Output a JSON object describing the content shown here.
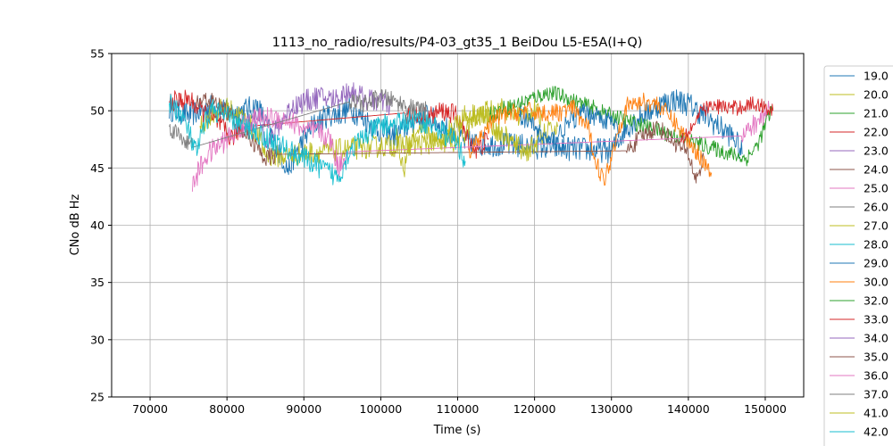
{
  "chart_data": {
    "type": "line",
    "title": "1113_no_radio/results/P4-03_gt35_1 BeiDou L5-E5A(I+Q)",
    "xlabel": "Time (s)",
    "ylabel": "CNo dB Hz",
    "xlim": [
      65000,
      155000
    ],
    "ylim": [
      25,
      55
    ],
    "xticks": [
      70000,
      80000,
      90000,
      100000,
      110000,
      120000,
      130000,
      140000,
      150000
    ],
    "xtick_labels": [
      "70000",
      "80000",
      "90000",
      "100000",
      "110000",
      "120000",
      "130000",
      "140000",
      "150000"
    ],
    "yticks": [
      25,
      30,
      35,
      40,
      45,
      50,
      55
    ],
    "ytick_labels": [
      "25",
      "30",
      "35",
      "40",
      "45",
      "50",
      "55"
    ],
    "grid": true,
    "legend_position": "outside-right",
    "series": [
      {
        "name": "19.0",
        "color": "#1f77b4",
        "noise": 1.1,
        "points": [
          [
            72500,
            50.2
          ],
          [
            75000,
            49.6
          ],
          [
            78000,
            50.4
          ],
          [
            81000,
            49.8
          ],
          [
            84000,
            50.4
          ],
          [
            86000,
            47.5
          ],
          [
            88000,
            44.8
          ],
          [
            89000,
            46.5
          ],
          [
            91000,
            48.6
          ],
          [
            93000,
            49.6
          ],
          [
            95000,
            49.8
          ],
          [
            96000,
            50.2
          ],
          [
            98000,
            49.2
          ],
          [
            100000,
            48.2
          ],
          [
            102000,
            47.8
          ],
          [
            104000,
            49.0
          ],
          [
            106000,
            49.6
          ],
          [
            108000,
            48.6
          ],
          [
            110000,
            47.8
          ],
          [
            111000,
            47.2
          ],
          [
            130000,
            46.5
          ],
          [
            132000,
            48.6
          ],
          [
            134000,
            49.6
          ],
          [
            136000,
            50.4
          ],
          [
            138000,
            51.0
          ],
          [
            140000,
            50.6
          ],
          [
            142000,
            49.6
          ],
          [
            144000,
            48.6
          ],
          [
            146000,
            47.6
          ],
          [
            147000,
            46.2
          ]
        ]
      },
      {
        "name": "20.0",
        "color": "#bcbd22",
        "noise": 1.0,
        "points": [
          [
            76500,
            48.6
          ],
          [
            78000,
            49.8
          ],
          [
            80000,
            50.2
          ],
          [
            82000,
            49.4
          ],
          [
            84000,
            48.0
          ],
          [
            85000,
            46.2
          ],
          [
            87000,
            46.0
          ],
          [
            90000,
            46.3
          ],
          [
            95000,
            46.6
          ],
          [
            100000,
            46.9
          ],
          [
            105000,
            47.1
          ],
          [
            110000,
            47.3
          ],
          [
            112000,
            49.0
          ],
          [
            114000,
            50.0
          ],
          [
            116000,
            50.2
          ],
          [
            118000,
            49.6
          ],
          [
            120000,
            50.0
          ],
          [
            121000,
            49.2
          ]
        ]
      },
      {
        "name": "21.0",
        "color": "#2ca02c",
        "noise": 0.7,
        "points": [
          [
            114000,
            49.6
          ],
          [
            116000,
            50.2
          ],
          [
            118000,
            50.6
          ],
          [
            120000,
            51.2
          ],
          [
            122000,
            51.6
          ],
          [
            124000,
            51.2
          ],
          [
            126000,
            50.6
          ],
          [
            128000,
            50.2
          ],
          [
            129000,
            49.8
          ],
          [
            147500,
            45.8
          ],
          [
            149000,
            47.0
          ],
          [
            150500,
            49.6
          ],
          [
            151000,
            50.2
          ]
        ]
      },
      {
        "name": "22.0",
        "color": "#d62728",
        "noise": 0.9,
        "points": [
          [
            72500,
            50.8
          ],
          [
            75000,
            51.0
          ],
          [
            77000,
            49.8
          ],
          [
            79000,
            48.8
          ],
          [
            80500,
            47.6
          ],
          [
            82000,
            48.6
          ],
          [
            103000,
            49.8
          ],
          [
            106000,
            49.4
          ],
          [
            108000,
            50.0
          ],
          [
            110000,
            49.6
          ],
          [
            111000,
            47.8
          ],
          [
            112500,
            46.5
          ],
          [
            114000,
            47.6
          ]
        ]
      },
      {
        "name": "23.0",
        "color": "#9467bd",
        "noise": 1.0,
        "points": [
          [
            82000,
            48.2
          ],
          [
            84000,
            49.4
          ],
          [
            85500,
            47.2
          ],
          [
            87000,
            49.0
          ],
          [
            88500,
            50.4
          ],
          [
            90000,
            50.8
          ],
          [
            92000,
            51.2
          ],
          [
            94000,
            51.0
          ],
          [
            96000,
            51.8
          ],
          [
            98000,
            51.0
          ],
          [
            100000,
            50.8
          ],
          [
            101500,
            50.4
          ]
        ]
      },
      {
        "name": "24.0",
        "color": "#8c564b",
        "noise": 0.8,
        "points": [
          [
            76000,
            50.6
          ],
          [
            77500,
            51.0
          ],
          [
            79000,
            50.4
          ],
          [
            80500,
            49.6
          ],
          [
            82000,
            48.4
          ],
          [
            83500,
            47.2
          ],
          [
            85000,
            45.8
          ],
          [
            86500,
            46.2
          ],
          [
            132000,
            46.5
          ],
          [
            134000,
            47.8
          ],
          [
            136000,
            48.6
          ],
          [
            138000,
            47.4
          ],
          [
            140000,
            46.2
          ],
          [
            141000,
            44.0
          ],
          [
            142000,
            45.8
          ]
        ]
      },
      {
        "name": "25.0",
        "color": "#e377c2",
        "noise": 1.0,
        "points": [
          [
            75500,
            43.5
          ],
          [
            76500,
            45.0
          ],
          [
            77500,
            46.2
          ],
          [
            79000,
            47.0
          ],
          [
            81000,
            48.0
          ],
          [
            83000,
            49.2
          ],
          [
            86000,
            49.4
          ],
          [
            88000,
            49.2
          ],
          [
            89500,
            48.6
          ],
          [
            90500,
            48.2
          ],
          [
            92000,
            48.2
          ],
          [
            93500,
            47.4
          ],
          [
            94500,
            45.0
          ],
          [
            95500,
            46.4
          ],
          [
            147000,
            47.8
          ],
          [
            149000,
            49.0
          ],
          [
            150000,
            49.8
          ],
          [
            150500,
            50.2
          ]
        ]
      },
      {
        "name": "26.0",
        "color": "#7f7f7f",
        "noise": 0.8,
        "points": [
          [
            72500,
            48.6
          ],
          [
            74000,
            47.8
          ],
          [
            75500,
            46.8
          ],
          [
            96000,
            50.8
          ],
          [
            98000,
            50.6
          ],
          [
            100000,
            51.2
          ],
          [
            102000,
            50.8
          ],
          [
            104000,
            50.2
          ],
          [
            106000,
            50.0
          ]
        ]
      },
      {
        "name": "27.0",
        "color": "#bcbd22",
        "noise": 1.0,
        "points": [
          [
            102000,
            47.8
          ],
          [
            103000,
            44.8
          ],
          [
            104000,
            47.4
          ],
          [
            106000,
            48.2
          ],
          [
            107500,
            47.0
          ],
          [
            109000,
            48.4
          ],
          [
            111000,
            49.6
          ],
          [
            113000,
            49.8
          ],
          [
            115000,
            48.4
          ],
          [
            117000,
            47.2
          ],
          [
            119000,
            46.4
          ],
          [
            121000,
            47.8
          ],
          [
            123000,
            48.6
          ]
        ]
      },
      {
        "name": "28.0",
        "color": "#17becf",
        "noise": 1.0,
        "points": [
          [
            72500,
            50.6
          ],
          [
            74000,
            49.8
          ],
          [
            75000,
            48.2
          ],
          [
            76000,
            46.2
          ],
          [
            77000,
            48.6
          ],
          [
            78000,
            50.2
          ],
          [
            94500,
            44.2
          ],
          [
            96000,
            46.6
          ],
          [
            98000,
            47.8
          ],
          [
            100000,
            48.8
          ],
          [
            102000,
            48.8
          ],
          [
            104000,
            49.2
          ],
          [
            106000,
            49.0
          ],
          [
            108000,
            48.2
          ],
          [
            110000,
            47.0
          ],
          [
            111000,
            45.6
          ]
        ]
      },
      {
        "name": "29.0",
        "color": "#1f77b4",
        "noise": 0.9,
        "points": [
          [
            118000,
            49.8
          ],
          [
            120000,
            48.6
          ],
          [
            122000,
            47.2
          ],
          [
            124000,
            48.6
          ],
          [
            126000,
            49.8
          ],
          [
            128000,
            49.6
          ],
          [
            130000,
            49.0
          ],
          [
            131000,
            48.2
          ]
        ]
      },
      {
        "name": "30.0",
        "color": "#ff7f0e",
        "noise": 0.8,
        "points": [
          [
            111500,
            46.0
          ],
          [
            113000,
            47.8
          ],
          [
            115000,
            49.4
          ],
          [
            117000,
            49.8
          ],
          [
            119000,
            50.0
          ],
          [
            121000,
            49.8
          ],
          [
            123000,
            49.8
          ],
          [
            125000,
            50.2
          ],
          [
            127000,
            48.4
          ],
          [
            128000,
            45.6
          ],
          [
            129000,
            43.8
          ],
          [
            130000,
            46.0
          ],
          [
            131000,
            48.6
          ],
          [
            132000,
            50.4
          ],
          [
            134000,
            50.8
          ],
          [
            136000,
            50.6
          ],
          [
            138000,
            49.2
          ],
          [
            140000,
            47.4
          ],
          [
            142000,
            45.6
          ],
          [
            143000,
            44.6
          ]
        ]
      },
      {
        "name": "32.0",
        "color": "#2ca02c",
        "noise": 0.7,
        "points": []
      },
      {
        "name": "33.0",
        "color": "#d62728",
        "noise": 0.7,
        "points": [
          [
            139000,
            47.6
          ],
          [
            140500,
            48.6
          ],
          [
            142000,
            50.2
          ],
          [
            144000,
            50.4
          ],
          [
            146000,
            50.2
          ],
          [
            148000,
            50.6
          ],
          [
            150000,
            50.4
          ],
          [
            151000,
            50.0
          ]
        ]
      },
      {
        "name": "34.0",
        "color": "#9467bd",
        "noise": 0.7,
        "points": []
      },
      {
        "name": "35.0",
        "color": "#8c564b",
        "noise": 0.7,
        "points": []
      },
      {
        "name": "36.0",
        "color": "#e377c2",
        "noise": 0.7,
        "points": []
      },
      {
        "name": "37.0",
        "color": "#7f7f7f",
        "noise": 0.7,
        "points": []
      },
      {
        "name": "41.0",
        "color": "#bcbd22",
        "noise": 0.7,
        "points": []
      },
      {
        "name": "42.0",
        "color": "#17becf",
        "noise": 0.7,
        "points": []
      }
    ]
  }
}
